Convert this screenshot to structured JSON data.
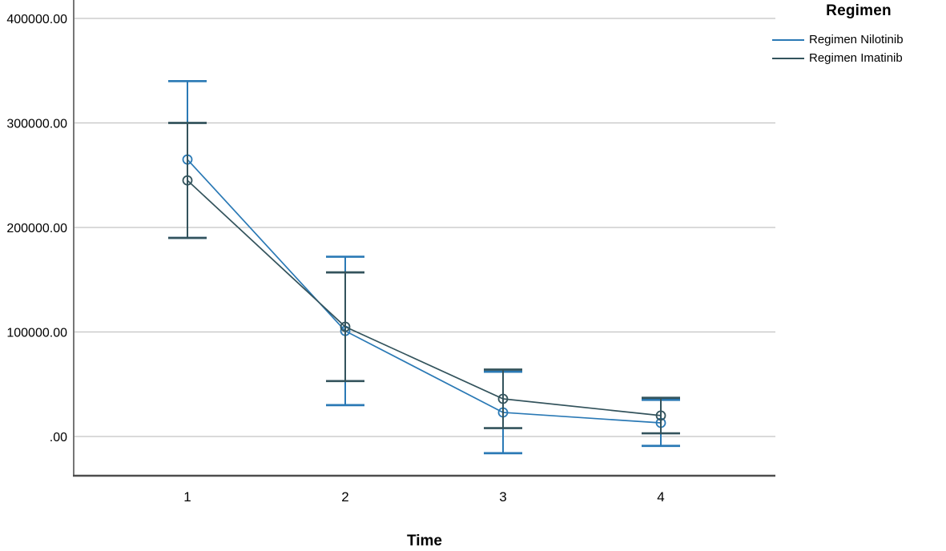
{
  "chart_data": {
    "type": "line",
    "title": "",
    "xlabel": "Time",
    "ylabel": "",
    "grid": true,
    "error_bars": true,
    "x_tick_labels": [
      "1",
      "2",
      "3",
      "4"
    ],
    "y_ticks": [
      {
        "label": ".00",
        "value": 0
      },
      {
        "label": "100000.00",
        "value": 100000
      },
      {
        "label": "200000.00",
        "value": 200000
      },
      {
        "label": "300000.00",
        "value": 300000
      },
      {
        "label": "400000.00",
        "value": 400000
      }
    ],
    "ylim": [
      -37500,
      417600
    ],
    "legend": {
      "title": "Regimen",
      "position": "top-right-outside"
    },
    "series": [
      {
        "name": "Regimen Nilotinib",
        "color": "#2a79b5",
        "marker": "open-circle",
        "means": [
          265000,
          101000,
          23000,
          13000
        ],
        "ci_low": [
          190000,
          30000,
          -16000,
          -9000
        ],
        "ci_high": [
          340000,
          172000,
          62000,
          35000
        ]
      },
      {
        "name": "Regimen Imatinib",
        "color": "#33535c",
        "marker": "open-circle",
        "means": [
          245000,
          105000,
          36000,
          20000
        ],
        "ci_low": [
          190000,
          53000,
          8000,
          3000
        ],
        "ci_high": [
          300000,
          157000,
          64000,
          37000
        ]
      }
    ]
  },
  "colors": {
    "gridline": "#c3c3c3",
    "axis_y": "#767676",
    "axis_x": "#4d4d4d",
    "text": "#000000"
  }
}
